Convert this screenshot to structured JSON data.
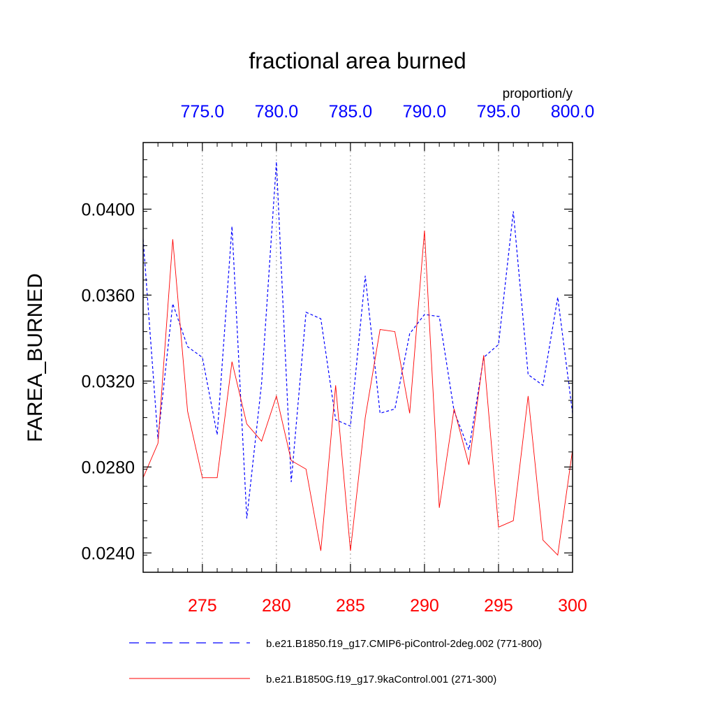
{
  "chart_data": {
    "type": "line",
    "title": "fractional area burned",
    "units": "proportion/y",
    "ylabel": "FAREA_BURNED",
    "ylim": [
      0.0231,
      0.0431
    ],
    "yticks": [
      0.024,
      0.028,
      0.032,
      0.036,
      0.04
    ],
    "ytick_labels": [
      "0.0240",
      "0.0280",
      "0.0320",
      "0.0360",
      "0.0400"
    ],
    "x_bottom": {
      "range": [
        271,
        300
      ],
      "ticks": [
        275,
        280,
        285,
        290,
        295,
        300
      ],
      "tick_labels": [
        "275",
        "280",
        "285",
        "290",
        "295",
        "300"
      ],
      "color": "#ff0000"
    },
    "x_top": {
      "range": [
        771,
        800
      ],
      "ticks": [
        775,
        780,
        785,
        790,
        795,
        800
      ],
      "tick_labels": [
        "775.0",
        "780.0",
        "785.0",
        "790.0",
        "795.0",
        "800.0"
      ],
      "color": "#0000ff"
    },
    "grid": "vertical dotted at major ticks",
    "legend_position": "bottom",
    "series": [
      {
        "name": "b.e21.B1850.f19_g17.CMIP6-piControl-2deg.002 (771-800)",
        "axis": "top",
        "color": "#0000ff",
        "style": "dashed",
        "x": [
          771,
          772,
          773,
          774,
          775,
          776,
          777,
          778,
          779,
          780,
          781,
          782,
          783,
          784,
          785,
          786,
          787,
          788,
          789,
          790,
          791,
          792,
          793,
          794,
          795,
          796,
          797,
          798,
          799,
          800
        ],
        "values": [
          0.0386,
          0.0293,
          0.0356,
          0.0336,
          0.0331,
          0.0295,
          0.0392,
          0.0256,
          0.0319,
          0.0422,
          0.0273,
          0.0352,
          0.0349,
          0.0302,
          0.0299,
          0.0369,
          0.0305,
          0.0307,
          0.0342,
          0.0351,
          0.035,
          0.0306,
          0.0288,
          0.0331,
          0.0337,
          0.0399,
          0.0323,
          0.0318,
          0.0359,
          0.0305
        ]
      },
      {
        "name": "b.e21.B1850G.f19_g17.9kaControl.001 (271-300)",
        "axis": "bottom",
        "color": "#ff0000",
        "style": "solid",
        "x": [
          271,
          272,
          273,
          274,
          275,
          276,
          277,
          278,
          279,
          280,
          281,
          282,
          283,
          284,
          285,
          286,
          287,
          288,
          289,
          290,
          291,
          292,
          293,
          294,
          295,
          296,
          297,
          298,
          299,
          300
        ],
        "values": [
          0.0275,
          0.0291,
          0.0386,
          0.0306,
          0.0275,
          0.0275,
          0.0329,
          0.03,
          0.0292,
          0.0313,
          0.0283,
          0.0279,
          0.0241,
          0.0318,
          0.0241,
          0.0303,
          0.0344,
          0.0343,
          0.0305,
          0.039,
          0.0261,
          0.0307,
          0.0281,
          0.0332,
          0.0252,
          0.0255,
          0.0313,
          0.0246,
          0.0239,
          0.0288
        ]
      }
    ]
  }
}
